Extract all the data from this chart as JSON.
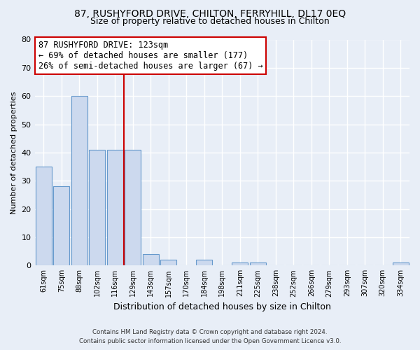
{
  "title": "87, RUSHYFORD DRIVE, CHILTON, FERRYHILL, DL17 0EQ",
  "subtitle": "Size of property relative to detached houses in Chilton",
  "xlabel": "Distribution of detached houses by size in Chilton",
  "ylabel": "Number of detached properties",
  "bar_labels": [
    "61sqm",
    "75sqm",
    "88sqm",
    "102sqm",
    "116sqm",
    "129sqm",
    "143sqm",
    "157sqm",
    "170sqm",
    "184sqm",
    "198sqm",
    "211sqm",
    "225sqm",
    "238sqm",
    "252sqm",
    "266sqm",
    "279sqm",
    "293sqm",
    "307sqm",
    "320sqm",
    "334sqm"
  ],
  "bar_values": [
    35,
    28,
    60,
    41,
    41,
    41,
    4,
    2,
    0,
    2,
    0,
    1,
    1,
    0,
    0,
    0,
    0,
    0,
    0,
    0,
    1
  ],
  "bar_color": "#ccd9ee",
  "bar_edge_color": "#6699cc",
  "vline_x": 4.5,
  "vline_color": "#cc0000",
  "ylim": [
    0,
    80
  ],
  "yticks": [
    0,
    10,
    20,
    30,
    40,
    50,
    60,
    70,
    80
  ],
  "annotation_title": "87 RUSHYFORD DRIVE: 123sqm",
  "annotation_line1": "← 69% of detached houses are smaller (177)",
  "annotation_line2": "26% of semi-detached houses are larger (67) →",
  "footer1": "Contains HM Land Registry data © Crown copyright and database right 2024.",
  "footer2": "Contains public sector information licensed under the Open Government Licence v3.0.",
  "background_color": "#e8eef7",
  "grid_color": "white",
  "title_fontsize": 10,
  "subtitle_fontsize": 9,
  "annotation_fontsize": 8.5,
  "ylabel_fontsize": 8,
  "xlabel_fontsize": 9
}
